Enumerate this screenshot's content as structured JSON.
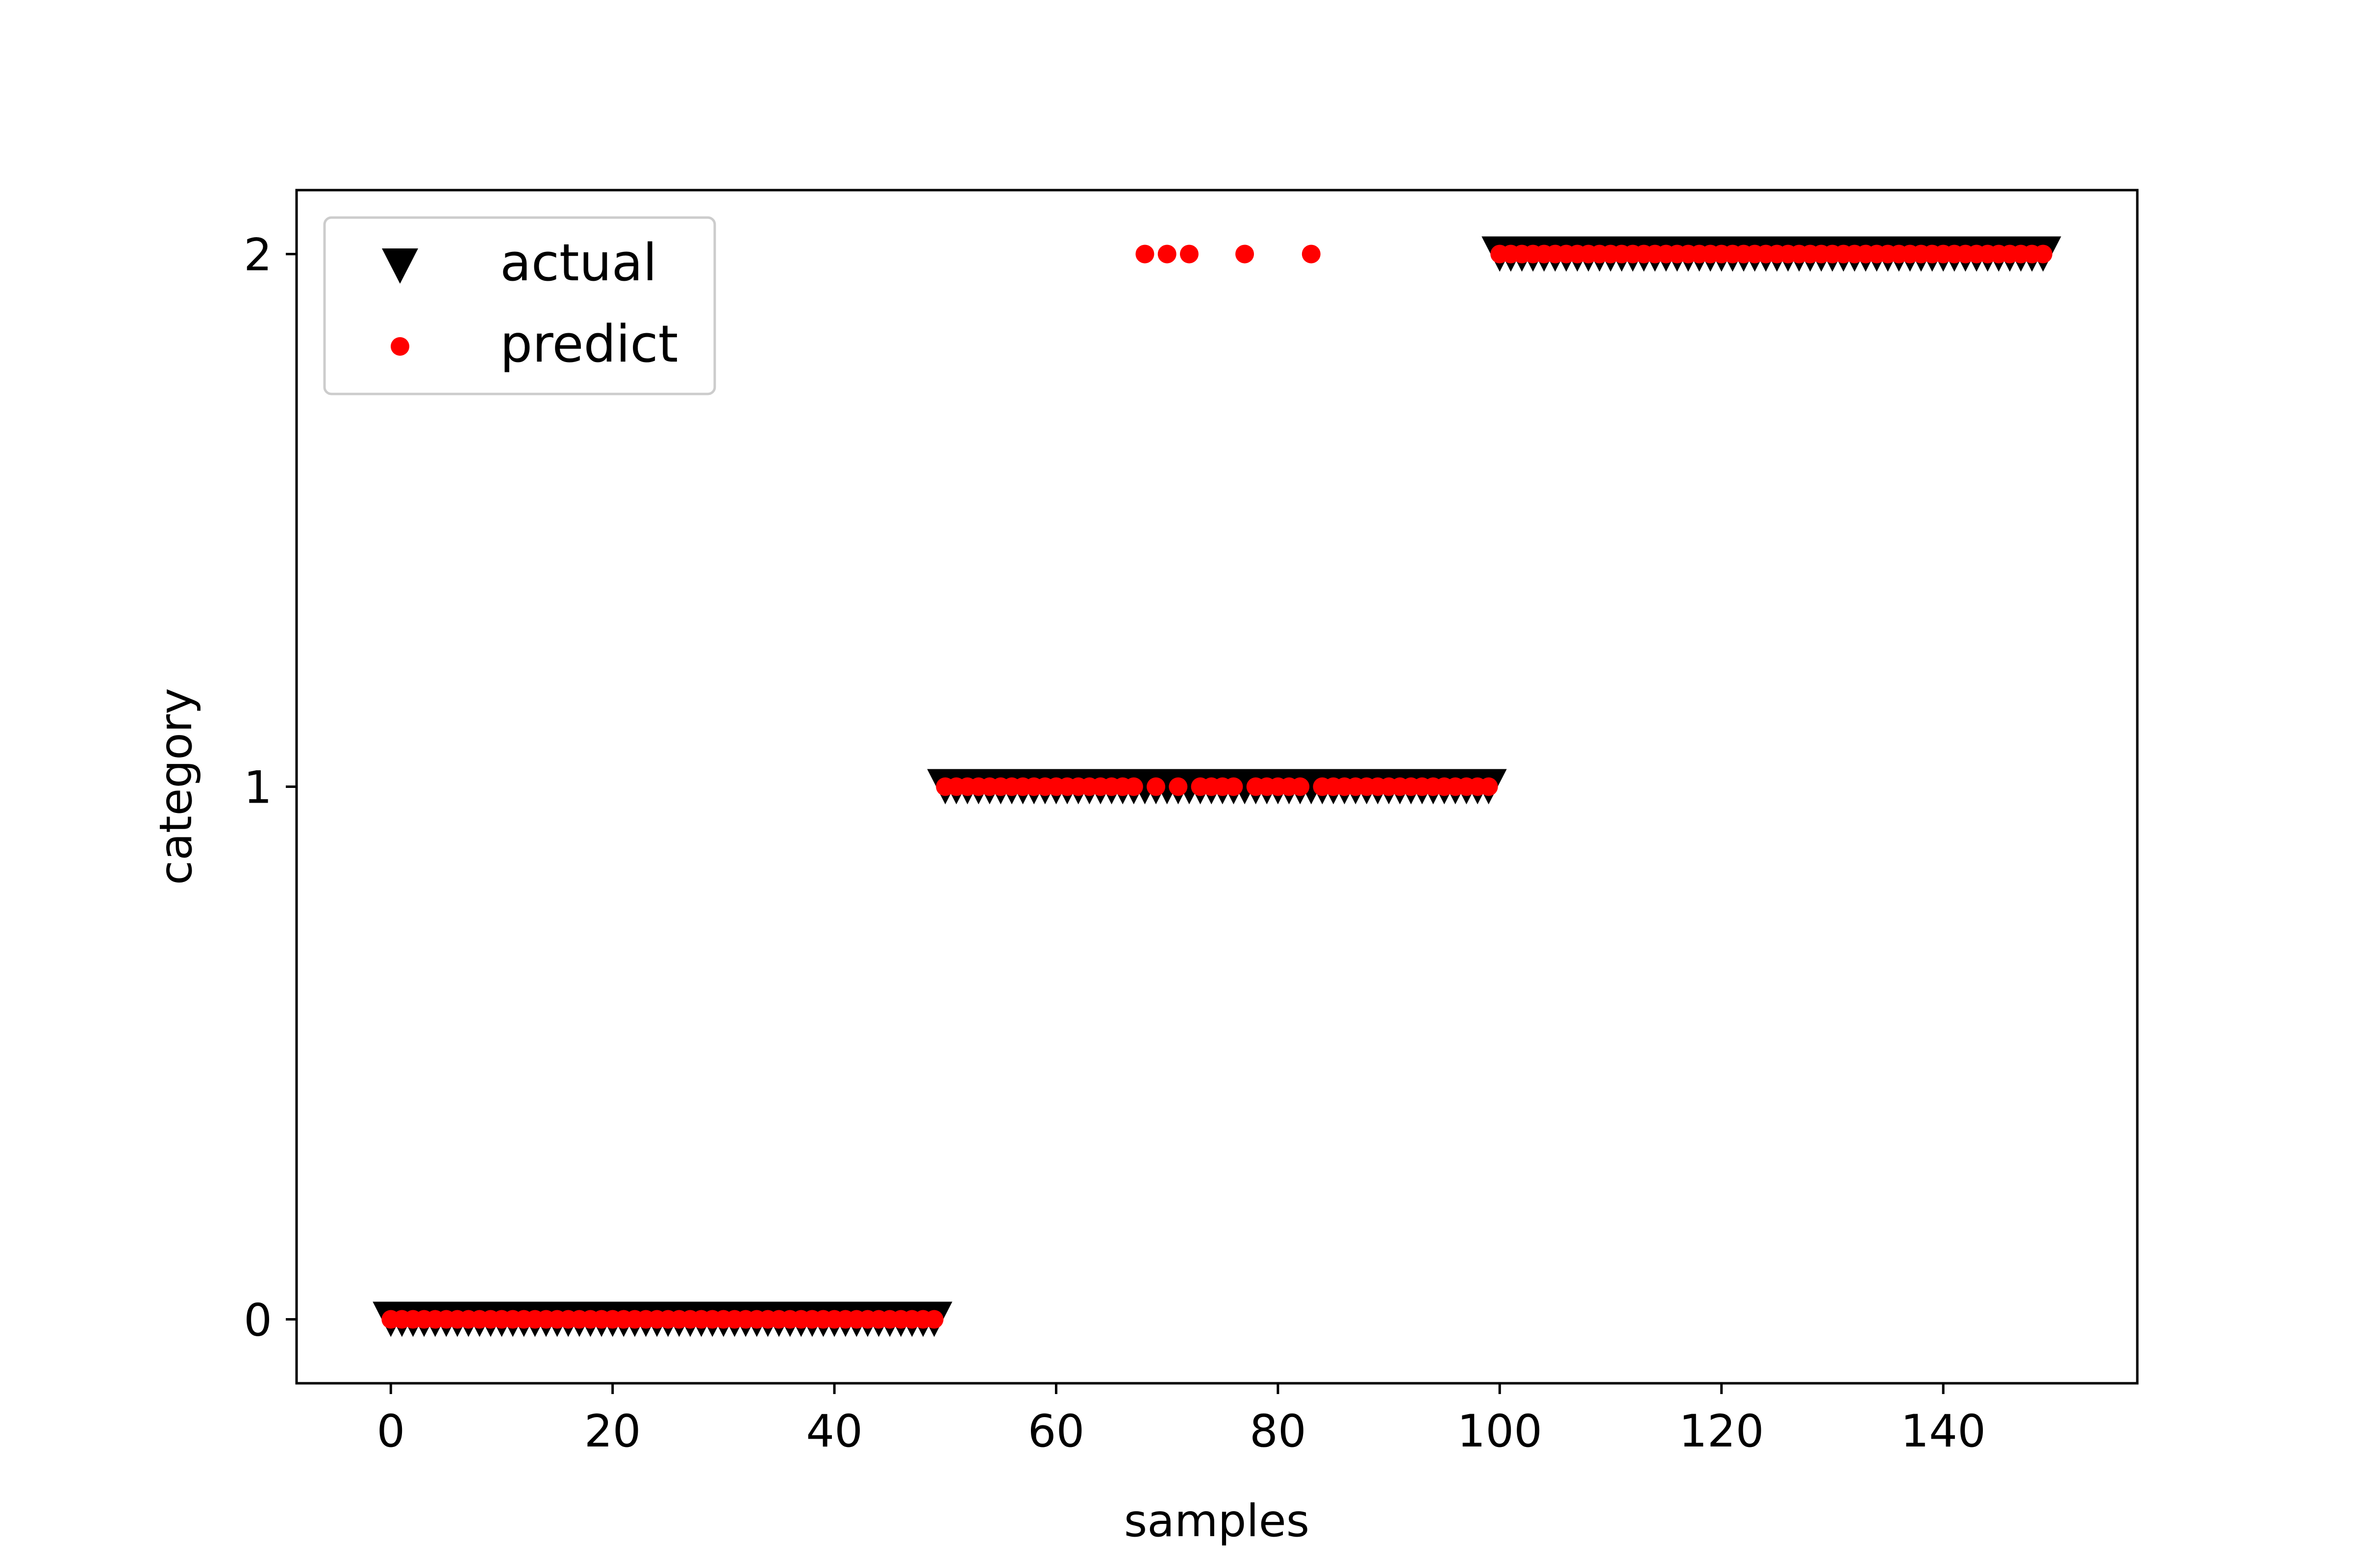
{
  "chart_data": {
    "type": "scatter",
    "title": "",
    "xlabel": "samples",
    "ylabel": "category",
    "xlim": [
      -8.5,
      157.5
    ],
    "ylim": [
      -0.12,
      2.12
    ],
    "xticks": [
      0,
      20,
      40,
      60,
      80,
      100,
      120,
      140
    ],
    "yticks": [
      0,
      1,
      2
    ],
    "grid": false,
    "legend": {
      "position": "top-left"
    },
    "series": [
      {
        "name": "actual",
        "marker": "triangle-down",
        "color": "#000000",
        "segments": [
          {
            "x_start": 0,
            "x_end": 49,
            "y": 0
          },
          {
            "x_start": 50,
            "x_end": 99,
            "y": 1
          },
          {
            "x_start": 100,
            "x_end": 149,
            "y": 2
          }
        ]
      },
      {
        "name": "predict",
        "marker": "circle",
        "color": "#ff0000",
        "segments": [
          {
            "x_start": 0,
            "x_end": 49,
            "y": 0
          },
          {
            "x_start": 50,
            "x_end": 99,
            "y": 1
          },
          {
            "x_start": 100,
            "x_end": 149,
            "y": 2
          }
        ],
        "exceptions": [
          {
            "x": 68,
            "y": 2
          },
          {
            "x": 70,
            "y": 2
          },
          {
            "x": 72,
            "y": 2
          },
          {
            "x": 77,
            "y": 2
          },
          {
            "x": 83,
            "y": 2
          }
        ]
      }
    ]
  }
}
